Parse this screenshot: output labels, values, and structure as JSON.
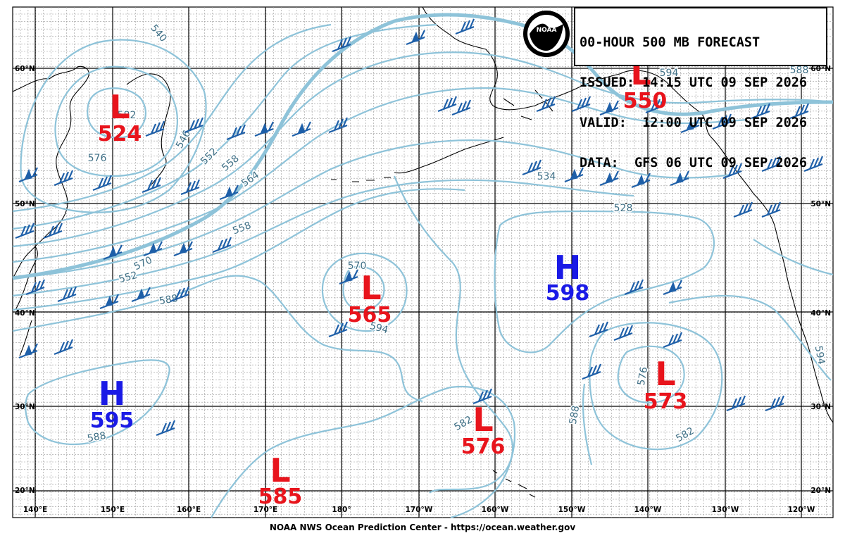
{
  "header": {
    "line1": "00-HOUR 500 MB FORECAST",
    "line2": "ISSUED: 14:15 UTC 09 SEP 2026",
    "line3": "VALID:  12:00 UTC 09 SEP 2026",
    "line4": "DATA:  GFS 06 UTC 09 SEP 2026"
  },
  "logo": {
    "text": "NOAA"
  },
  "footer": "NOAA NWS Ocean Prediction Center - https://ocean.weather.gov",
  "colors": {
    "low": "#e8141c",
    "high": "#1a1ae6",
    "contour": "#8ec3d9",
    "contour_label": "#3f6f85",
    "barb": "#1e5fa8",
    "grid": "#000000",
    "coast": "#000000"
  },
  "lon_labels": [
    "140°E",
    "150°E",
    "160°E",
    "170°E",
    "180°",
    "170°W",
    "160°W",
    "150°W",
    "140°W",
    "130°W",
    "120°W"
  ],
  "lat_labels_left": [
    "60°N",
    "50°N",
    "40°N",
    "30°N",
    "20°N"
  ],
  "lat_labels_right": [
    "60°N",
    "50°N",
    "40°N",
    "30°N",
    "20°N"
  ],
  "pressure_centers": [
    {
      "type": "L",
      "symbol": "L",
      "value": "524"
    },
    {
      "type": "L",
      "symbol": "L",
      "value": "550"
    },
    {
      "type": "L",
      "symbol": "L",
      "value": "565"
    },
    {
      "type": "H",
      "symbol": "H",
      "value": "598"
    },
    {
      "type": "H",
      "symbol": "H",
      "value": "595"
    },
    {
      "type": "L",
      "symbol": "L",
      "value": "573"
    },
    {
      "type": "L",
      "symbol": "L",
      "value": "576"
    },
    {
      "type": "L",
      "symbol": "L",
      "value": "585"
    }
  ],
  "contour_labels": [
    "540",
    "546",
    "552",
    "558",
    "564",
    "570",
    "576",
    "582",
    "588",
    "594",
    "534",
    "528",
    "558",
    "552",
    "588",
    "594",
    "582",
    "576",
    "588",
    "594",
    "582",
    "570",
    "588",
    "594"
  ]
}
